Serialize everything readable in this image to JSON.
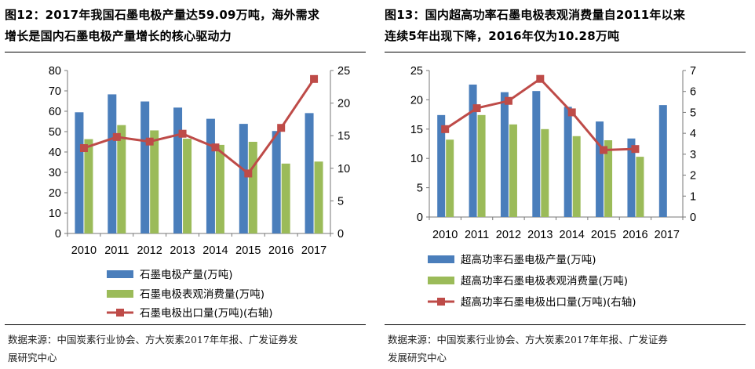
{
  "left": {
    "title_line1": "图12：2017年我国石墨电极产量达59.09万吨，海外需求",
    "title_line2": "增长是国内石墨电极产量增长的核心驱动力",
    "source_line1": "数据来源：中国炭素行业协会、方大炭素2017年年报、广发证券发",
    "source_line2": "展研究中心"
  },
  "right": {
    "title_line1": "图13：国内超高功率石墨电极表观消费量自2011年以来",
    "title_line2": "连续5年出现下降，2016年仅为10.28万吨",
    "source_line1": "数据来源：中国炭素行业协会、方大炭素2017年年报、广发证券",
    "source_line2": "发展研究中心"
  },
  "colors": {
    "blue": "#4a7ebb",
    "green": "#9bbb59",
    "red": "#be4b48"
  },
  "chart_data": [
    {
      "type": "bar",
      "categories": [
        "2010",
        "2011",
        "2012",
        "2013",
        "2014",
        "2015",
        "2016",
        "2017"
      ],
      "series": [
        {
          "name": "石墨电极产量(万吨)",
          "kind": "bar",
          "axis": "left",
          "color": "#4a7ebb",
          "values": [
            59.5,
            68.3,
            64.8,
            61.8,
            56.3,
            53.8,
            50.3,
            59.09
          ]
        },
        {
          "name": "石墨电极表观消费量(万吨)",
          "kind": "bar",
          "axis": "left",
          "color": "#9bbb59",
          "values": [
            46.3,
            53.2,
            50.6,
            46.5,
            43.5,
            45.0,
            34.3,
            35.3
          ]
        },
        {
          "name": "石墨电极出口量(万吨)(右轴)",
          "kind": "line",
          "axis": "right",
          "color": "#be4b48",
          "values": [
            13.1,
            14.8,
            14.1,
            15.3,
            13.2,
            9.2,
            16.2,
            23.7
          ]
        }
      ],
      "y_left": {
        "min": 0,
        "max": 80,
        "ticks": [
          "0",
          "10",
          "20",
          "30",
          "40",
          "50",
          "60",
          "70",
          "80"
        ]
      },
      "y_right": {
        "min": 0,
        "max": 25,
        "ticks": [
          "0",
          "5",
          "10",
          "15",
          "20",
          "25"
        ]
      }
    },
    {
      "type": "bar",
      "categories": [
        "2010",
        "2011",
        "2012",
        "2013",
        "2014",
        "2015",
        "2016",
        "2017"
      ],
      "series": [
        {
          "name": "超高功率石墨电极产量(万吨)",
          "kind": "bar",
          "axis": "left",
          "color": "#4a7ebb",
          "values": [
            17.4,
            22.6,
            21.3,
            21.5,
            18.8,
            16.3,
            13.4,
            19.1
          ]
        },
        {
          "name": "超高功率石墨电极表观消费量(万吨)",
          "kind": "bar",
          "axis": "left",
          "color": "#9bbb59",
          "values": [
            13.2,
            17.4,
            15.8,
            15.0,
            13.8,
            13.1,
            10.28,
            null
          ]
        },
        {
          "name": "超高功率石墨电极出口量(万吨)(右轴)",
          "kind": "line",
          "axis": "right",
          "color": "#be4b48",
          "values": [
            4.2,
            5.2,
            5.55,
            6.6,
            5.0,
            3.2,
            3.25,
            null
          ]
        }
      ],
      "y_left": {
        "min": 0,
        "max": 25,
        "ticks": [
          "0",
          "5",
          "10",
          "15",
          "20",
          "25"
        ]
      },
      "y_right": {
        "min": 0,
        "max": 7,
        "ticks": [
          "0",
          "1",
          "2",
          "3",
          "4",
          "5",
          "6",
          "7"
        ]
      }
    }
  ]
}
